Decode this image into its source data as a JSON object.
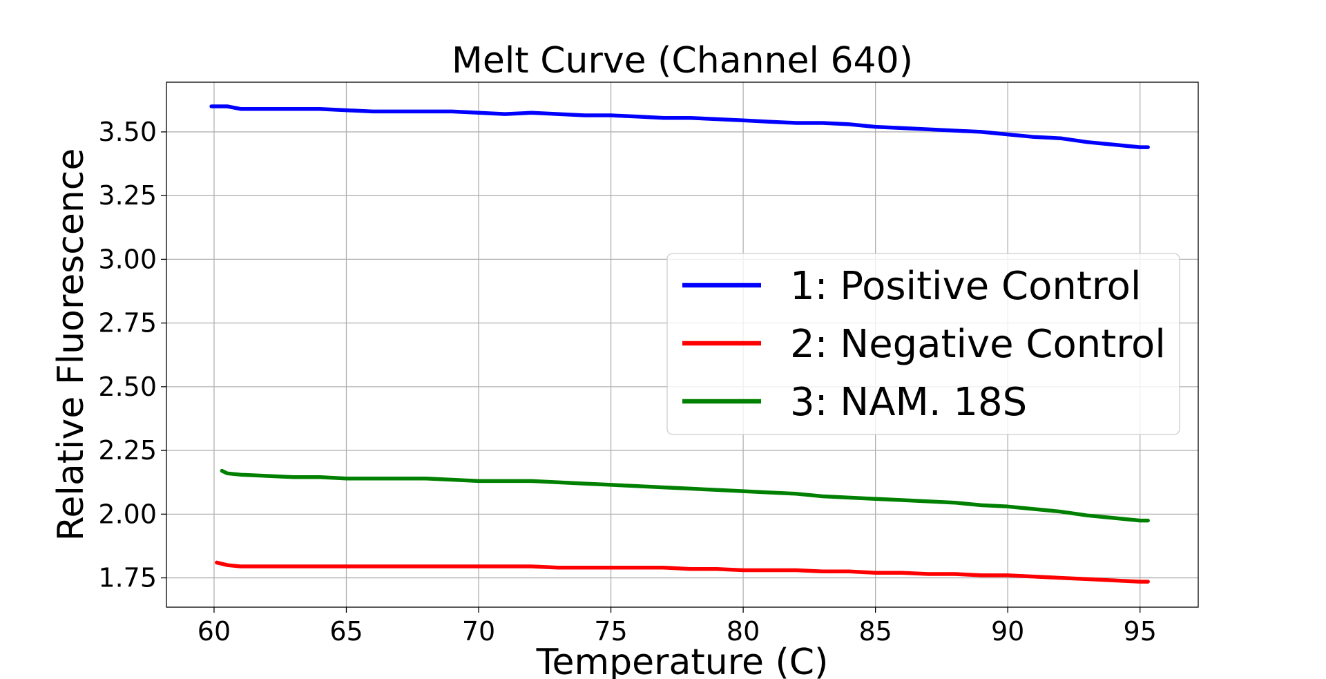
{
  "chart_data": {
    "type": "line",
    "title": "Melt Curve (Channel 640)",
    "xlabel": "Temperature (C)",
    "ylabel": "Relative Fluorescence",
    "xlim": [
      58.2,
      97.2
    ],
    "ylim": [
      1.635,
      3.695
    ],
    "xticks": [
      60,
      65,
      70,
      75,
      80,
      85,
      90,
      95
    ],
    "yticks": [
      1.75,
      2.0,
      2.25,
      2.5,
      2.75,
      3.0,
      3.25,
      3.5
    ],
    "ytick_labels": [
      "1.75",
      "2.00",
      "2.25",
      "2.50",
      "2.75",
      "3.00",
      "3.25",
      "3.50"
    ],
    "xtick_labels": [
      "60",
      "65",
      "70",
      "75",
      "80",
      "85",
      "90",
      "95"
    ],
    "grid": true,
    "legend_position": "center-right",
    "series": [
      {
        "name": "1: Positive Control",
        "color": "#0000ff",
        "x": [
          59.9,
          60.5,
          61,
          62,
          63,
          64,
          65,
          66,
          67,
          68,
          69,
          70,
          71,
          72,
          73,
          74,
          75,
          76,
          77,
          78,
          79,
          80,
          81,
          82,
          83,
          84,
          85,
          86,
          87,
          88,
          89,
          90,
          91,
          92,
          93,
          94,
          95,
          95.3
        ],
        "y": [
          3.6,
          3.6,
          3.59,
          3.59,
          3.59,
          3.59,
          3.585,
          3.58,
          3.58,
          3.58,
          3.58,
          3.575,
          3.57,
          3.575,
          3.57,
          3.565,
          3.565,
          3.56,
          3.555,
          3.555,
          3.55,
          3.545,
          3.54,
          3.535,
          3.535,
          3.53,
          3.52,
          3.515,
          3.51,
          3.505,
          3.5,
          3.49,
          3.48,
          3.475,
          3.46,
          3.45,
          3.44,
          3.44
        ]
      },
      {
        "name": "2: Negative Control",
        "color": "#ff0000",
        "x": [
          60.1,
          60.5,
          61,
          62,
          63,
          64,
          65,
          66,
          67,
          68,
          69,
          70,
          71,
          72,
          73,
          74,
          75,
          76,
          77,
          78,
          79,
          80,
          81,
          82,
          83,
          84,
          85,
          86,
          87,
          88,
          89,
          90,
          91,
          92,
          93,
          94,
          95,
          95.3
        ],
        "y": [
          1.81,
          1.8,
          1.795,
          1.795,
          1.795,
          1.795,
          1.795,
          1.795,
          1.795,
          1.795,
          1.795,
          1.795,
          1.795,
          1.795,
          1.79,
          1.79,
          1.79,
          1.79,
          1.79,
          1.785,
          1.785,
          1.78,
          1.78,
          1.78,
          1.775,
          1.775,
          1.77,
          1.77,
          1.765,
          1.765,
          1.76,
          1.76,
          1.755,
          1.75,
          1.745,
          1.74,
          1.735,
          1.735
        ]
      },
      {
        "name": "3: NAM. 18S",
        "color": "#008000",
        "x": [
          60.3,
          60.5,
          61,
          62,
          63,
          64,
          65,
          66,
          67,
          68,
          69,
          70,
          71,
          72,
          73,
          74,
          75,
          76,
          77,
          78,
          79,
          80,
          81,
          82,
          83,
          84,
          85,
          86,
          87,
          88,
          89,
          90,
          91,
          92,
          93,
          94,
          95,
          95.3
        ],
        "y": [
          2.17,
          2.16,
          2.155,
          2.15,
          2.145,
          2.145,
          2.14,
          2.14,
          2.14,
          2.14,
          2.135,
          2.13,
          2.13,
          2.13,
          2.125,
          2.12,
          2.115,
          2.11,
          2.105,
          2.1,
          2.095,
          2.09,
          2.085,
          2.08,
          2.07,
          2.065,
          2.06,
          2.055,
          2.05,
          2.045,
          2.035,
          2.03,
          2.02,
          2.01,
          1.995,
          1.985,
          1.975,
          1.975
        ]
      }
    ]
  }
}
